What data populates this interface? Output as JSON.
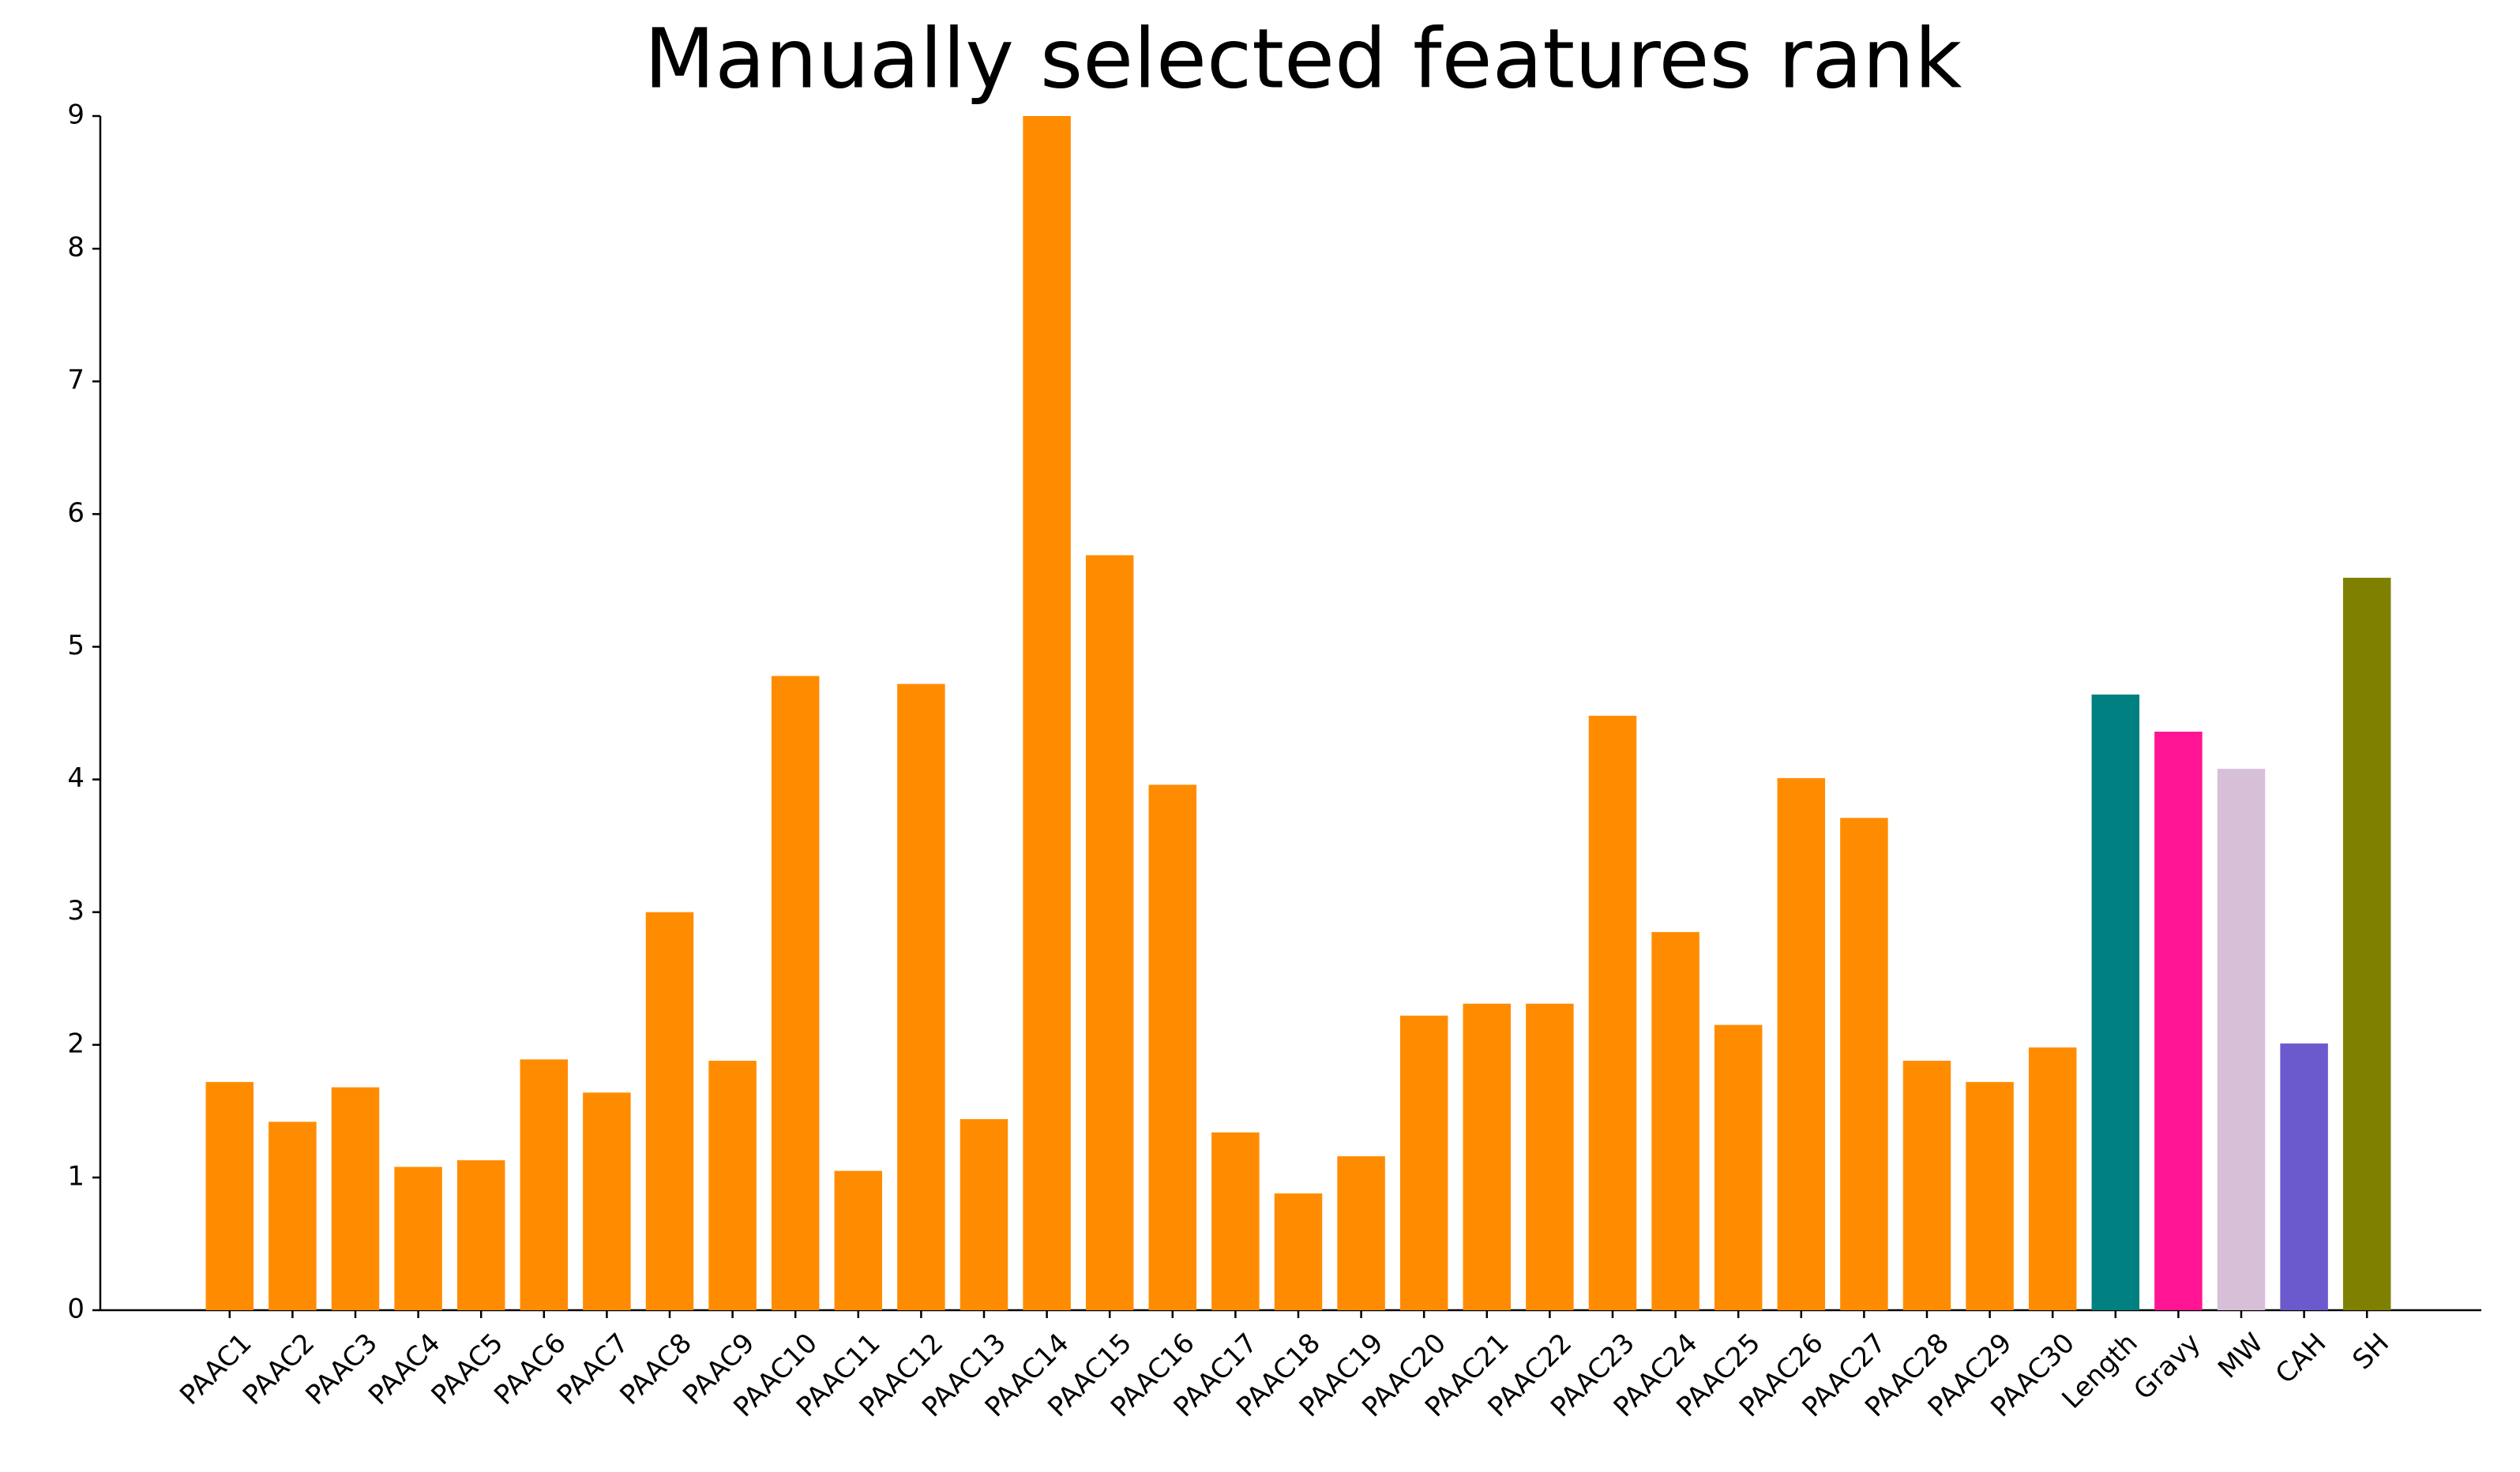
{
  "chart_data": {
    "type": "bar",
    "title": "Manually selected features rank",
    "categories": [
      "PAAC1",
      "PAAC2",
      "PAAC3",
      "PAAC4",
      "PAAC5",
      "PAAC6",
      "PAAC7",
      "PAAC8",
      "PAAC9",
      "PAAC10",
      "PAAC11",
      "PAAC12",
      "PAAC13",
      "PAAC14",
      "PAAC15",
      "PAAC16",
      "PAAC17",
      "PAAC18",
      "PAAC19",
      "PAAC20",
      "PAAC21",
      "PAAC22",
      "PAAC23",
      "PAAC24",
      "PAAC25",
      "PAAC26",
      "PAAC27",
      "PAAC28",
      "PAAC29",
      "PAAC30",
      "Length",
      "Gravy",
      "MW",
      "CAH",
      "SH"
    ],
    "values": [
      1.72,
      1.42,
      1.68,
      1.08,
      1.13,
      1.89,
      1.64,
      3.0,
      1.88,
      4.78,
      1.05,
      4.72,
      1.44,
      9.0,
      5.69,
      3.96,
      1.34,
      0.88,
      1.16,
      2.22,
      2.31,
      2.31,
      4.48,
      2.85,
      2.15,
      4.01,
      3.71,
      1.88,
      1.72,
      1.98,
      4.64,
      4.36,
      4.08,
      2.01,
      5.52
    ],
    "colors": [
      "#ff8c00",
      "#ff8c00",
      "#ff8c00",
      "#ff8c00",
      "#ff8c00",
      "#ff8c00",
      "#ff8c00",
      "#ff8c00",
      "#ff8c00",
      "#ff8c00",
      "#ff8c00",
      "#ff8c00",
      "#ff8c00",
      "#ff8c00",
      "#ff8c00",
      "#ff8c00",
      "#ff8c00",
      "#ff8c00",
      "#ff8c00",
      "#ff8c00",
      "#ff8c00",
      "#ff8c00",
      "#ff8c00",
      "#ff8c00",
      "#ff8c00",
      "#ff8c00",
      "#ff8c00",
      "#ff8c00",
      "#ff8c00",
      "#ff8c00",
      "#008080",
      "#ff1493",
      "#d8bfd8",
      "#6a5acd",
      "#808000"
    ],
    "ylim": [
      0,
      9
    ],
    "yticks": [
      0,
      1,
      2,
      3,
      4,
      5,
      6,
      7,
      8,
      9
    ],
    "grid": false
  }
}
